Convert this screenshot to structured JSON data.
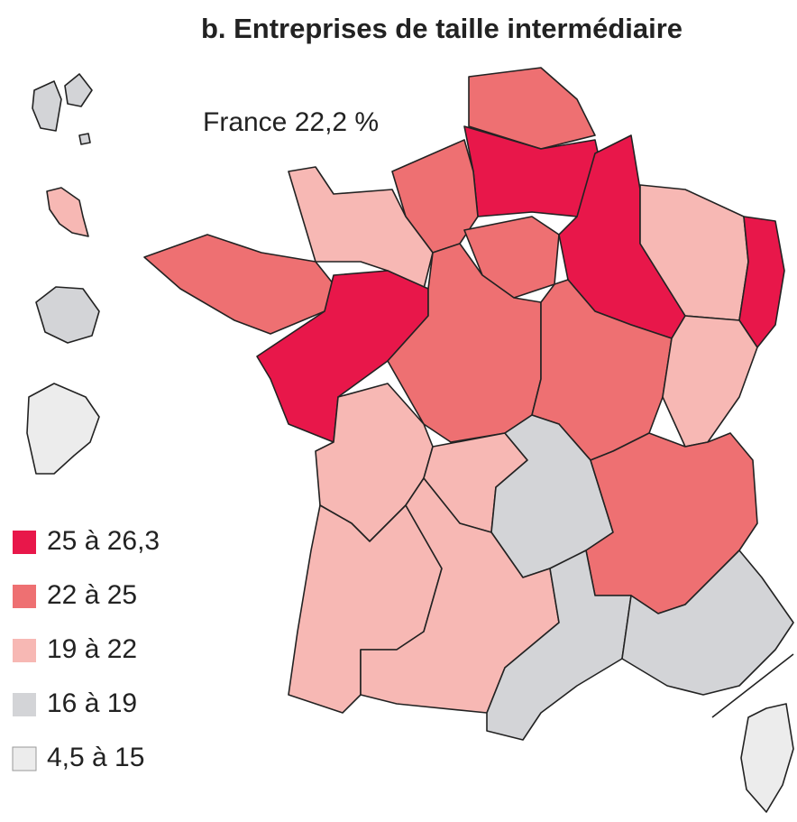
{
  "title": "b. Entreprises de taille intermédiaire",
  "annotation": "France 22,2 %",
  "legend": [
    {
      "label": "25 à 26,3",
      "color": "#e8174a"
    },
    {
      "label": "22 à 25",
      "color": "#ee7072"
    },
    {
      "label": "19 à 22",
      "color": "#f7b8b4"
    },
    {
      "label": "16 à 19",
      "color": "#d3d4d7"
    },
    {
      "label": "4,5 à 15",
      "color": "#ececec"
    }
  ]
}
